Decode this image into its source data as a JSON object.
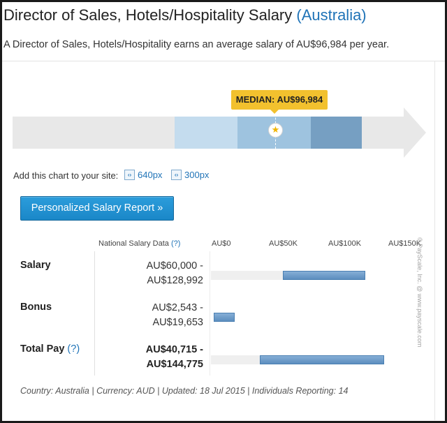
{
  "header": {
    "title": "Director of Sales, Hotels/Hospitality Salary",
    "location": "(Australia)",
    "summary": "A Director of Sales, Hotels/Hospitality earns an average salary of AU$96,984 per year."
  },
  "range_chart": {
    "median_label": "MEDIAN: AU$96,984",
    "median_icon": "star-icon",
    "colors": {
      "track": "#e8e8e8",
      "seg_light": "#c4dcee",
      "seg_mid": "#9ec3df",
      "seg_dark": "#769fc2",
      "median_tag": "#f2c12e"
    }
  },
  "embed": {
    "label": "Add this chart to your site:",
    "links": [
      {
        "label": "640px",
        "icon": "embed-code-icon"
      },
      {
        "label": "300px",
        "icon": "embed-code-icon"
      }
    ]
  },
  "report_button": {
    "label": "Personalized Salary Report »"
  },
  "table": {
    "header": "National Salary Data",
    "help_mark": "(?)",
    "axis_ticks": [
      "AU$0",
      "AU$50K",
      "AU$100K",
      "AU$150K"
    ],
    "rows": [
      {
        "label": "Salary",
        "range_line1": "AU$60,000 -",
        "range_line2": "AU$128,992",
        "min": 60000,
        "max": 128992,
        "bold": false,
        "help": ""
      },
      {
        "label": "Bonus",
        "range_line1": "AU$2,543 -",
        "range_line2": "AU$19,653",
        "min": 2543,
        "max": 19653,
        "bold": false,
        "help": ""
      },
      {
        "label": "Total Pay",
        "range_line1": "AU$40,715 -",
        "range_line2": "AU$144,775",
        "min": 40715,
        "max": 144775,
        "bold": true,
        "help": "(?)"
      }
    ],
    "bar_color": "#5c8ebf"
  },
  "copyright": "© PayScale, Inc. @ www.payscale.com",
  "footer": "Country: Australia | Currency: AUD | Updated: 18 Jul 2015 | Individuals Reporting: 14"
}
